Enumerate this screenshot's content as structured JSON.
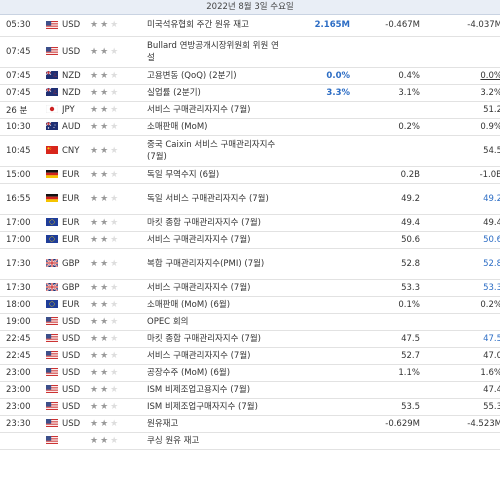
{
  "date_header": "2022년 8월 3일 수요일",
  "colors": {
    "star_on": "#999999",
    "star_off": "#dddddd",
    "positive": "#2b6cc4"
  },
  "rows": [
    {
      "time": "05:30",
      "flag": "us-flag",
      "cur": "USD",
      "stars": 2,
      "event": "미국석유협회 주간 원유 재고",
      "actual": "2.165M",
      "actual_style": "blue",
      "forecast": "-0.467M",
      "previous": "-4.037M",
      "prev_style": ""
    },
    {
      "time": "07:45",
      "flag": "us-flag",
      "cur": "USD",
      "stars": 2,
      "event": "Bullard 연방공개시장위원회 위원 연설",
      "actual": "",
      "actual_style": "",
      "forecast": "",
      "previous": "",
      "prev_style": ""
    },
    {
      "time": "07:45",
      "flag": "nz-flag",
      "cur": "NZD",
      "stars": 2,
      "event": "고용변동 (QoQ) (2분기)",
      "actual": "0.0%",
      "actual_style": "blue",
      "forecast": "0.4%",
      "previous": "0.0%",
      "prev_style": "under"
    },
    {
      "time": "07:45",
      "flag": "nz-flag",
      "cur": "NZD",
      "stars": 2,
      "event": "실업률 (2분기)",
      "actual": "3.3%",
      "actual_style": "blue",
      "forecast": "3.1%",
      "previous": "3.2%",
      "prev_style": ""
    },
    {
      "time": "26 분",
      "flag": "jp-flag",
      "cur": "JPY",
      "stars": 2,
      "event": "서비스 구매관리자지수 (7월)",
      "actual": "",
      "actual_style": "",
      "forecast": "",
      "previous": "51.2",
      "prev_style": ""
    },
    {
      "time": "10:30",
      "flag": "au-flag",
      "cur": "AUD",
      "stars": 2,
      "event": "소매판매 (MoM)",
      "actual": "",
      "actual_style": "",
      "forecast": "0.2%",
      "previous": "0.9%",
      "prev_style": ""
    },
    {
      "time": "10:45",
      "flag": "cn-flag",
      "cur": "CNY",
      "stars": 2,
      "event": "중국 Caixin 서비스 구매관리자지수 (7월)",
      "actual": "",
      "actual_style": "",
      "forecast": "",
      "previous": "54.5",
      "prev_style": ""
    },
    {
      "time": "15:00",
      "flag": "de-flag",
      "cur": "EUR",
      "stars": 2,
      "event": "독일 무역수지 (6월)",
      "actual": "",
      "actual_style": "",
      "forecast": "0.2B",
      "previous": "-1.0B",
      "prev_style": ""
    },
    {
      "time": "16:55",
      "flag": "de-flag",
      "cur": "EUR",
      "stars": 2,
      "event": "독일 서비스 구매관리자지수 (7월)",
      "actual": "",
      "actual_style": "",
      "forecast": "49.2",
      "previous": "49.2",
      "prev_style": "blue-n"
    },
    {
      "time": "17:00",
      "flag": "eu-flag",
      "cur": "EUR",
      "stars": 2,
      "event": "마킷 종합 구매관리자지수 (7월)",
      "actual": "",
      "actual_style": "",
      "forecast": "49.4",
      "previous": "49.4",
      "prev_style": ""
    },
    {
      "time": "17:00",
      "flag": "eu-flag",
      "cur": "EUR",
      "stars": 2,
      "event": "서비스 구매관리자지수 (7월)",
      "actual": "",
      "actual_style": "",
      "forecast": "50.6",
      "previous": "50.6",
      "prev_style": "blue-n"
    },
    {
      "time": "17:30",
      "flag": "gb-flag",
      "cur": "GBP",
      "stars": 2,
      "event": "복합 구매관리자지수(PMI) (7월)",
      "actual": "",
      "actual_style": "",
      "forecast": "52.8",
      "previous": "52.8",
      "prev_style": "blue-n"
    },
    {
      "time": "17:30",
      "flag": "gb-flag",
      "cur": "GBP",
      "stars": 2,
      "event": "서비스 구매관리자지수 (7월)",
      "actual": "",
      "actual_style": "",
      "forecast": "53.3",
      "previous": "53.3",
      "prev_style": "blue-n"
    },
    {
      "time": "18:00",
      "flag": "eu-flag",
      "cur": "EUR",
      "stars": 2,
      "event": "소매판매 (MoM) (6월)",
      "actual": "",
      "actual_style": "",
      "forecast": "0.1%",
      "previous": "0.2%",
      "prev_style": ""
    },
    {
      "time": "19:00",
      "flag": "us-flag",
      "cur": "USD",
      "stars": 2,
      "event": "OPEC 회의",
      "actual": "",
      "actual_style": "",
      "forecast": "",
      "previous": "",
      "prev_style": ""
    },
    {
      "time": "22:45",
      "flag": "us-flag",
      "cur": "USD",
      "stars": 2,
      "event": "마킷 종합 구매관리자지수 (7월)",
      "actual": "",
      "actual_style": "",
      "forecast": "47.5",
      "previous": "47.5",
      "prev_style": "blue-n"
    },
    {
      "time": "22:45",
      "flag": "us-flag",
      "cur": "USD",
      "stars": 2,
      "event": "서비스 구매관리자지수 (7월)",
      "actual": "",
      "actual_style": "",
      "forecast": "52.7",
      "previous": "47.0",
      "prev_style": ""
    },
    {
      "time": "23:00",
      "flag": "us-flag",
      "cur": "USD",
      "stars": 2,
      "event": "공장수주 (MoM) (6월)",
      "actual": "",
      "actual_style": "",
      "forecast": "1.1%",
      "previous": "1.6%",
      "prev_style": ""
    },
    {
      "time": "23:00",
      "flag": "us-flag",
      "cur": "USD",
      "stars": 2,
      "event": "ISM 비제조업고용지수 (7월)",
      "actual": "",
      "actual_style": "",
      "forecast": "",
      "previous": "47.4",
      "prev_style": ""
    },
    {
      "time": "23:00",
      "flag": "us-flag",
      "cur": "USD",
      "stars": 2,
      "event": "ISM 비제조업구매자지수 (7월)",
      "actual": "",
      "actual_style": "",
      "forecast": "53.5",
      "previous": "55.3",
      "prev_style": ""
    },
    {
      "time": "23:30",
      "flag": "us-flag",
      "cur": "USD",
      "stars": 2,
      "event": "원유재고",
      "actual": "",
      "actual_style": "",
      "forecast": "-0.629M",
      "previous": "-4.523M",
      "prev_style": ""
    },
    {
      "time": "",
      "flag": "us-flag",
      "cur": "",
      "stars": 2,
      "event": "쿠싱 원유 재고",
      "actual": "",
      "actual_style": "",
      "forecast": "",
      "previous": "",
      "prev_style": ""
    }
  ]
}
